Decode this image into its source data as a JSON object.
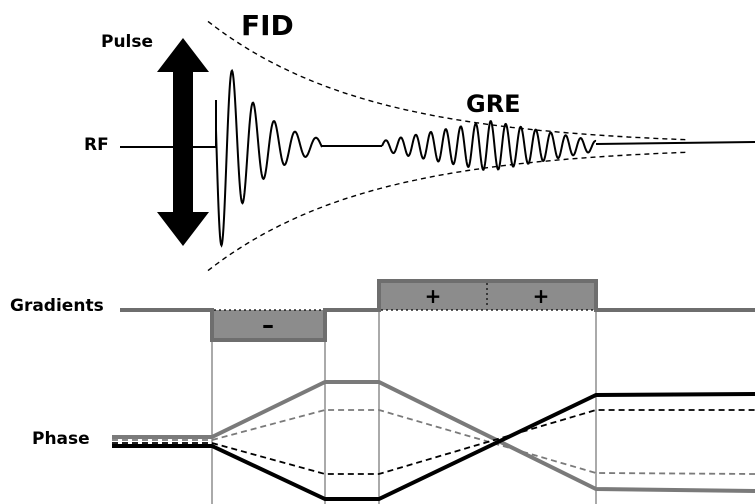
{
  "labels": {
    "pulse": "Pulse",
    "rf": "RF",
    "fid": "FID",
    "gre": "GRE",
    "gradients": "Gradients",
    "phase": "Phase",
    "negative_lobe": "–",
    "positive_lobe_1": "+",
    "positive_lobe_2": "+"
  },
  "colors": {
    "line": "#000000",
    "gradient_line": "#6e6e6e",
    "lobe_fill": "#8c8c8c",
    "phase_grey": "#7a7a7a"
  }
}
